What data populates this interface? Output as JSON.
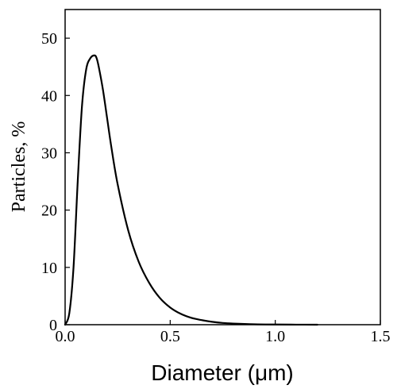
{
  "chart_data": {
    "type": "line",
    "title": "",
    "xlabel": "Diameter (μm)",
    "ylabel": "Particles, %",
    "xlim": [
      0,
      1.5
    ],
    "ylim": [
      0,
      55
    ],
    "x_ticks": [
      "0.0",
      "0.5",
      "1.0",
      "1.5"
    ],
    "y_ticks": [
      "0",
      "10",
      "20",
      "30",
      "40",
      "50"
    ],
    "grid": false,
    "legend": "none",
    "colors": {
      "line": "#000000",
      "axis": "#000000",
      "background": "#ffffff"
    },
    "series": [
      {
        "x": [
          0.0,
          0.02,
          0.04,
          0.06,
          0.08,
          0.1,
          0.12,
          0.14,
          0.15,
          0.16,
          0.18,
          0.2,
          0.22,
          0.25,
          0.3,
          0.35,
          0.4,
          0.45,
          0.5,
          0.55,
          0.6,
          0.65,
          0.7,
          0.75,
          0.8,
          0.9,
          1.0,
          1.1,
          1.2
        ],
        "values": [
          0.0,
          2.0,
          10.0,
          25.0,
          38.0,
          44.5,
          46.5,
          47.0,
          46.5,
          45.0,
          41.0,
          36.0,
          31.0,
          24.5,
          16.5,
          11.0,
          7.3,
          4.7,
          3.0,
          1.9,
          1.2,
          0.8,
          0.5,
          0.3,
          0.2,
          0.08,
          0.03,
          0.01,
          0.0
        ]
      }
    ]
  }
}
